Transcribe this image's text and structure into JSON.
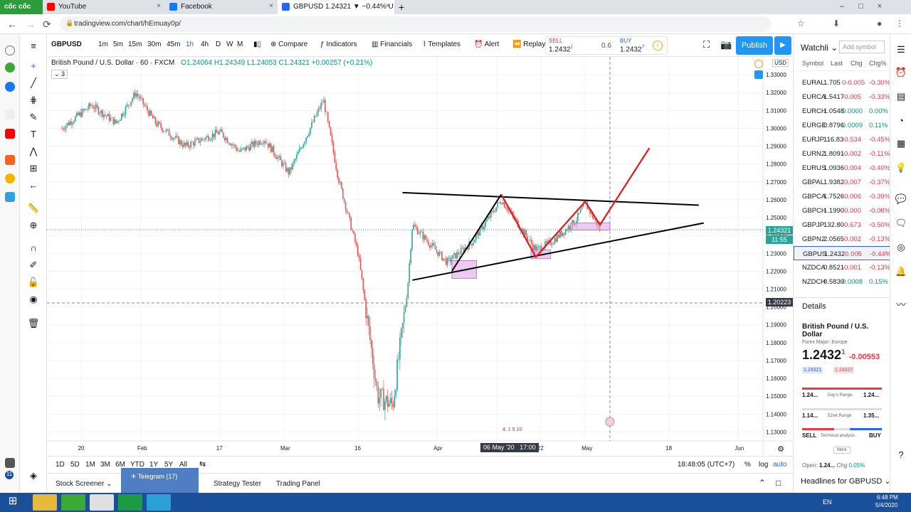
{
  "browser": {
    "logo": "cốc cốc",
    "tabs": [
      {
        "title": "YouTube",
        "color": "#ff0000"
      },
      {
        "title": "Facebook",
        "color": "#1877f2"
      },
      {
        "title": "GBPUSD 1.24321 ▼ −0.44% U",
        "color": "#2962ff"
      }
    ],
    "url": "tradingview.com/chart/hEmuay0p/",
    "side_badge": "11"
  },
  "toolbar": {
    "symbol": "GBPUSD",
    "intervals": [
      "1m",
      "5m",
      "15m",
      "30m",
      "45m",
      "1h",
      "4h",
      "D",
      "W",
      "M"
    ],
    "active_interval": "1h",
    "compare": "Compare",
    "indicators": "Indicators",
    "financials": "Financials",
    "templates": "Templates",
    "alert": "Alert",
    "replay": "Replay",
    "sell_label": "SELL",
    "sell_price": "1.2432",
    "sell_sup": "1",
    "spread": "0.6",
    "buy_label": "BUY",
    "buy_price": "1.2432",
    "buy_sup": "7",
    "publish": "Publish"
  },
  "chart": {
    "title": "British Pound / U.S. Dollar · 60 · FXCM",
    "ohlc": "O1.24064  H1.24349  L1.24053  C1.24321  +0.00257 (+0.21%)",
    "indicator_count": "3",
    "currency": "USD",
    "last_price": "1.24321",
    "countdown": "11:55",
    "crosshair_price": "1.20223",
    "crosshair_date": "06 May '20",
    "crosshair_time": "17:00",
    "event_label": "4. 1 5 10",
    "colors": {
      "up": "#26a69a",
      "down": "#ef5350",
      "pattern": "#000000",
      "projection": "#e4181b",
      "zone": "#e1a6e8"
    }
  },
  "chart_data": {
    "type": "candlestick",
    "symbol": "GBPUSD",
    "interval": "60",
    "ylim": [
      1.125,
      1.34
    ],
    "yticks": [
      "1.33000",
      "1.32000",
      "1.31000",
      "1.30000",
      "1.29000",
      "1.28000",
      "1.27000",
      "1.26000",
      "1.25000",
      "1.24000",
      "1.23000",
      "1.22000",
      "1.21000",
      "1.20000",
      "1.19000",
      "1.18000",
      "1.17000",
      "1.16000",
      "1.15000",
      "1.14000",
      "1.13000"
    ],
    "xticks": [
      "20",
      "Feb",
      "17",
      "Mar",
      "16",
      "Apr",
      "13",
      "22",
      "May",
      "18",
      "Jun"
    ],
    "price_path": [
      {
        "t": "2020-01-16",
        "p": 1.3
      },
      {
        "t": "2020-01-22",
        "p": 1.313
      },
      {
        "t": "2020-01-27",
        "p": 1.303
      },
      {
        "t": "2020-01-31",
        "p": 1.32
      },
      {
        "t": "2020-02-04",
        "p": 1.303
      },
      {
        "t": "2020-02-10",
        "p": 1.29
      },
      {
        "t": "2020-02-17",
        "p": 1.298
      },
      {
        "t": "2020-02-21",
        "p": 1.287
      },
      {
        "t": "2020-02-26",
        "p": 1.294
      },
      {
        "t": "2020-03-02",
        "p": 1.275
      },
      {
        "t": "2020-03-09",
        "p": 1.316
      },
      {
        "t": "2020-03-12",
        "p": 1.272
      },
      {
        "t": "2020-03-16",
        "p": 1.23
      },
      {
        "t": "2020-03-20",
        "p": 1.15
      },
      {
        "t": "2020-03-23",
        "p": 1.145
      },
      {
        "t": "2020-03-26",
        "p": 1.21
      },
      {
        "t": "2020-03-27",
        "p": 1.246
      },
      {
        "t": "2020-04-03",
        "p": 1.225
      },
      {
        "t": "2020-04-08",
        "p": 1.236
      },
      {
        "t": "2020-04-14",
        "p": 1.26
      },
      {
        "t": "2020-04-17",
        "p": 1.248
      },
      {
        "t": "2020-04-21",
        "p": 1.232
      },
      {
        "t": "2020-04-24",
        "p": 1.236
      },
      {
        "t": "2020-04-29",
        "p": 1.248
      },
      {
        "t": "2020-05-01",
        "p": 1.258
      },
      {
        "t": "2020-05-04",
        "p": 1.2432
      }
    ],
    "drawings": {
      "resistance": [
        {
          "t": "2020-03-25",
          "p": 1.264
        },
        {
          "t": "2020-05-24",
          "p": 1.257
        }
      ],
      "support": [
        {
          "t": "2020-03-27",
          "p": 1.215
        },
        {
          "t": "2020-05-25",
          "p": 1.247
        }
      ],
      "zigzag": [
        {
          "t": "2020-04-04",
          "p": 1.22
        },
        {
          "t": "2020-04-14",
          "p": 1.263
        },
        {
          "t": "2020-04-21",
          "p": 1.228
        },
        {
          "t": "2020-05-01",
          "p": 1.259
        },
        {
          "t": "2020-05-04",
          "p": 1.246
        },
        {
          "t": "2020-05-14",
          "p": 1.289
        }
      ],
      "zones": [
        {
          "t0": "2020-04-04",
          "t1": "2020-04-09",
          "p0": 1.216,
          "p1": 1.226
        },
        {
          "t0": "2020-04-20",
          "t1": "2020-04-24",
          "p0": 1.227,
          "p1": 1.232
        },
        {
          "t0": "2020-04-28",
          "t1": "2020-05-06",
          "p0": 1.243,
          "p1": 1.247
        }
      ]
    }
  },
  "timeframes": {
    "items": [
      "1D",
      "5D",
      "1M",
      "3M",
      "6M",
      "YTD",
      "1Y",
      "5Y",
      "All"
    ],
    "clock": "18:48:05 (UTC+7)",
    "percent": "%",
    "log": "log",
    "auto": "auto"
  },
  "bottom": {
    "stock_screener": "Stock Screener",
    "telegram": "Telegram (17)",
    "strategy_tester": "Strategy Tester",
    "trading_panel": "Trading Panel"
  },
  "watchlist": {
    "title": "Watchli",
    "add_symbol": "Add symbol",
    "headers": [
      "Symbol",
      "Last",
      "Chg",
      "Chg%"
    ],
    "rows": [
      {
        "sym": "EURAL",
        "last": "1.705",
        "chg": "0-0.005",
        "pct": "-0.30%",
        "dir": "neg"
      },
      {
        "sym": "EURCA",
        "last": "1.5417",
        "chg": "-0.005",
        "pct": "-0.33%",
        "dir": "neg"
      },
      {
        "sym": "EURCH",
        "last": "1.0548",
        "chg": "0.0000",
        "pct": "0.00%",
        "dir": "pos"
      },
      {
        "sym": "EURGE",
        "last": "0.8796",
        "chg": "0.0009",
        "pct": "0.11%",
        "dir": "pos"
      },
      {
        "sym": "EURJP",
        "last": "116.83",
        "chg": "-0.534",
        "pct": "-0.45%",
        "dir": "neg"
      },
      {
        "sym": "EURN2",
        "last": "1.8091",
        "chg": "-0.002",
        "pct": "-0.11%",
        "dir": "neg"
      },
      {
        "sym": "EURUS",
        "last": "1.0936",
        "chg": "-0.004",
        "pct": "-0.40%",
        "dir": "neg"
      },
      {
        "sym": "GBPAL",
        "last": "1.9382",
        "chg": "-0.007",
        "pct": "-0.37%",
        "dir": "neg"
      },
      {
        "sym": "GBPCA",
        "last": "1.7526",
        "chg": "-0.006",
        "pct": "-0.39%",
        "dir": "neg"
      },
      {
        "sym": "GBPCH",
        "last": "1.1990",
        "chg": "-0.000",
        "pct": "-0.08%",
        "dir": "neg"
      },
      {
        "sym": "GBPJP",
        "last": "132.80",
        "chg": "-0.673",
        "pct": "-0.50%",
        "dir": "neg"
      },
      {
        "sym": "GBPN2",
        "last": "2.0565",
        "chg": "-0.002",
        "pct": "-0.13%",
        "dir": "neg"
      },
      {
        "sym": "GBPUS",
        "last": "1.2432",
        "chg": "-0.005",
        "pct": "-0.44%",
        "dir": "neg"
      },
      {
        "sym": "NZDCA",
        "last": "0.8521",
        "chg": "-0.001",
        "pct": "-0.13%",
        "dir": "neg"
      },
      {
        "sym": "NZDCH",
        "last": "0.5830",
        "chg": "0.0008",
        "pct": "0.15%",
        "dir": "pos"
      }
    ],
    "details_title": "Details",
    "details_name": "British Pound / U.S. Dollar",
    "details_sub": "Forex Major: Europe",
    "details_price": "1.2432",
    "details_price_sup": "1",
    "details_change": "-0.00553",
    "bid": "1.24321",
    "ask": "1.24327",
    "day_low": "1.24...",
    "day_range": "Day's Range",
    "day_high": "1.24...",
    "wk_low": "1.14...",
    "wk_range": "52wk Range",
    "wk_high": "1.35...",
    "sell": "SELL",
    "ta": "Technical analysis",
    "buy": "BUY",
    "more": "More",
    "open_label": "Open:",
    "open_value": "1.24...",
    "chg_label": "Chg",
    "chg_pct": "0.05%",
    "headlines": "Headlines for GBPUSD"
  },
  "taskbar": {
    "lang": "EN",
    "time": "6:48 PM",
    "date": "5/4/2020"
  }
}
